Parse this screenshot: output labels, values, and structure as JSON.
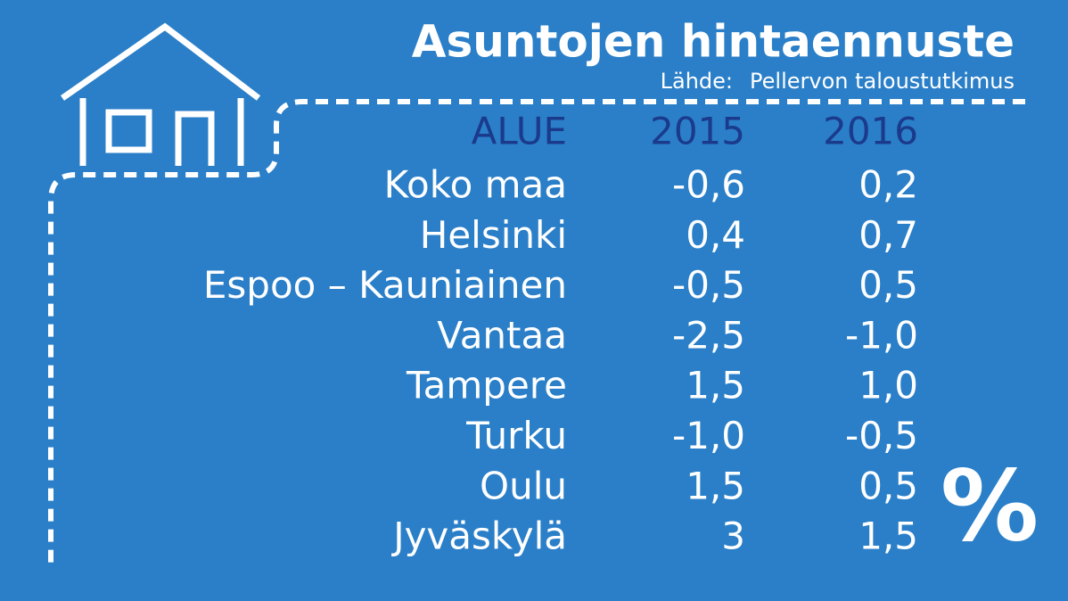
{
  "header": {
    "title": "Asuntojen hintaennuste",
    "source_label": "Lähde:",
    "source": "Pellervon taloustutkimus"
  },
  "table": {
    "columns": [
      "ALUE",
      "2015",
      "2016"
    ],
    "rows": [
      [
        "Koko maa",
        "-0,6",
        "0,2"
      ],
      [
        "Helsinki",
        "0,4",
        "0,7"
      ],
      [
        "Espoo – Kauniainen",
        "-0,5",
        "0,5"
      ],
      [
        "Vantaa",
        "-2,5",
        "-1,0"
      ],
      [
        "Tampere",
        "1,5",
        "1,0"
      ],
      [
        "Turku",
        "-1,0",
        "-0,5"
      ],
      [
        "Oulu",
        "1,5",
        "0,5"
      ],
      [
        "Jyväskylä",
        "3",
        "1,5"
      ]
    ],
    "unit": "%"
  }
}
